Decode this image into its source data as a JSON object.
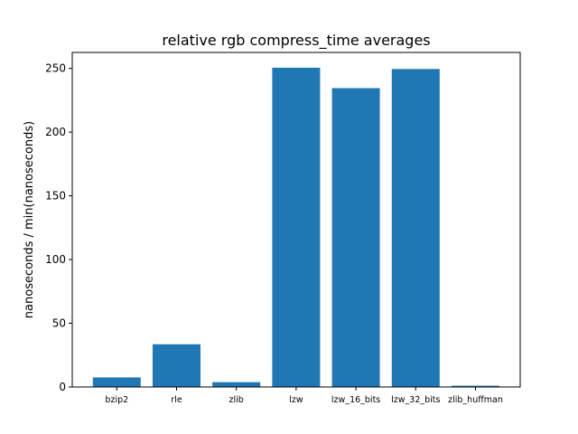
{
  "chart_data": {
    "type": "bar",
    "title": "relative rgb compress_time averages",
    "xlabel": "",
    "ylabel": "nanoseconds / min(nanoseconds)",
    "categories": [
      "bzip2",
      "rle",
      "zlib",
      "lzw",
      "lzw_16_bits",
      "lzw_32_bits",
      "zlib_huffman"
    ],
    "values": [
      7.5,
      33.5,
      3.8,
      250.5,
      234.5,
      249.5,
      1.0
    ],
    "ylim": [
      0,
      262.5
    ],
    "yticks": [
      0,
      50,
      100,
      150,
      200,
      250
    ],
    "grid": false,
    "legend": "none",
    "bar_color": "#1f77b4"
  }
}
